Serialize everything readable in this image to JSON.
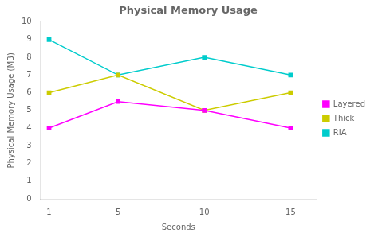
{
  "chart_data": {
    "type": "line",
    "title": "Physical Memory Usage",
    "xlabel": "Seconds",
    "ylabel": "Physical Memory Usage (MB)",
    "x": [
      1,
      5,
      10,
      15
    ],
    "series": [
      {
        "name": "Layered",
        "color": "#ff00ff",
        "marker": "square",
        "values": [
          4.0,
          5.5,
          5.0,
          4.0
        ]
      },
      {
        "name": "Thick",
        "color": "#cccc00",
        "marker": "square",
        "values": [
          6.0,
          7.0,
          5.0,
          6.0
        ]
      },
      {
        "name": "RIA",
        "color": "#00cccc",
        "marker": "square",
        "values": [
          9.0,
          7.0,
          8.0,
          7.0
        ]
      }
    ],
    "xlim": [
      0.5,
      16.5
    ],
    "xticks": [
      1,
      5,
      10,
      15
    ],
    "ylim": [
      0,
      10
    ],
    "yticks": [
      0,
      1,
      2,
      3,
      4,
      5,
      6,
      7,
      8,
      9,
      10
    ],
    "grid": false,
    "legend": "right"
  }
}
